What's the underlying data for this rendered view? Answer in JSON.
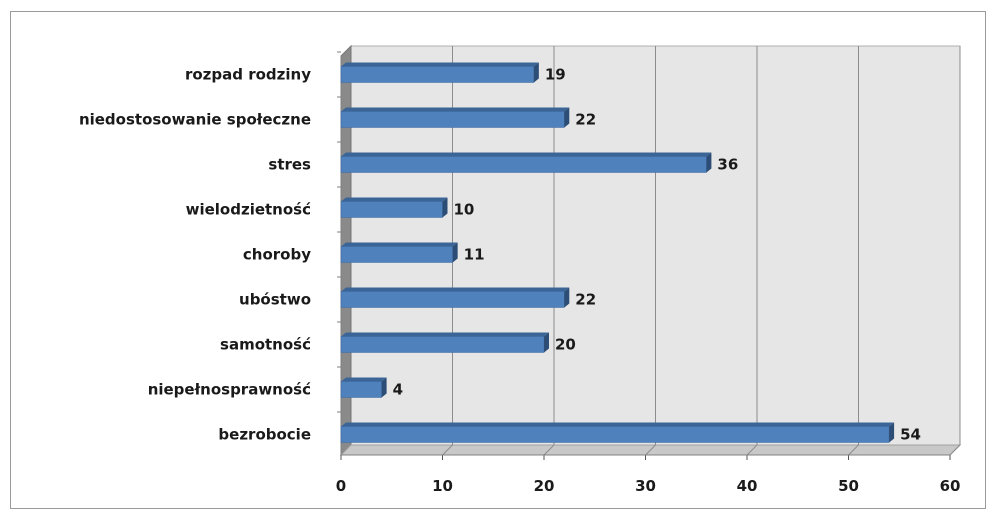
{
  "chart_data": {
    "type": "bar",
    "orientation": "horizontal",
    "categories": [
      "rozpad rodziny",
      "niedostosowanie społeczne",
      "stres",
      "wielodzietność",
      "choroby",
      "ubóstwo",
      "samotność",
      "niepełnosprawność",
      "bezrobocie"
    ],
    "values": [
      19,
      22,
      36,
      10,
      11,
      22,
      20,
      4,
      54
    ],
    "xlim": [
      0,
      60
    ],
    "xticks": [
      0,
      10,
      20,
      30,
      40,
      50,
      60
    ],
    "grid": "vertical",
    "legend": "none",
    "colors": {
      "bar_front": "#4f81bd",
      "bar_top": "#3a6596",
      "bar_side": "#2c4d75",
      "wall": "#e6e6e6",
      "floor": "#c8c8c8",
      "grid": "#8c8c8c"
    }
  }
}
